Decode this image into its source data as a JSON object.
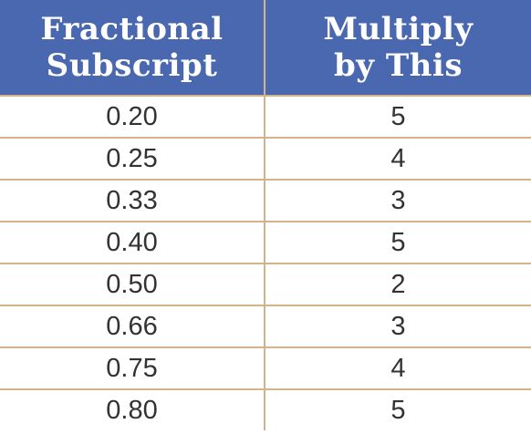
{
  "table": {
    "headers": [
      [
        "Fractional",
        "Subscript"
      ],
      [
        "Multiply",
        "by This"
      ]
    ],
    "rows": [
      [
        "0.20",
        "5"
      ],
      [
        "0.25",
        "4"
      ],
      [
        "0.33",
        "3"
      ],
      [
        "0.40",
        "5"
      ],
      [
        "0.50",
        "2"
      ],
      [
        "0.66",
        "3"
      ],
      [
        "0.75",
        "4"
      ],
      [
        "0.80",
        "5"
      ]
    ]
  },
  "colors": {
    "header_bg": "#4a68b0",
    "header_text": "#ffffff",
    "rule": "#d2b48a",
    "cell_text": "#333333"
  }
}
